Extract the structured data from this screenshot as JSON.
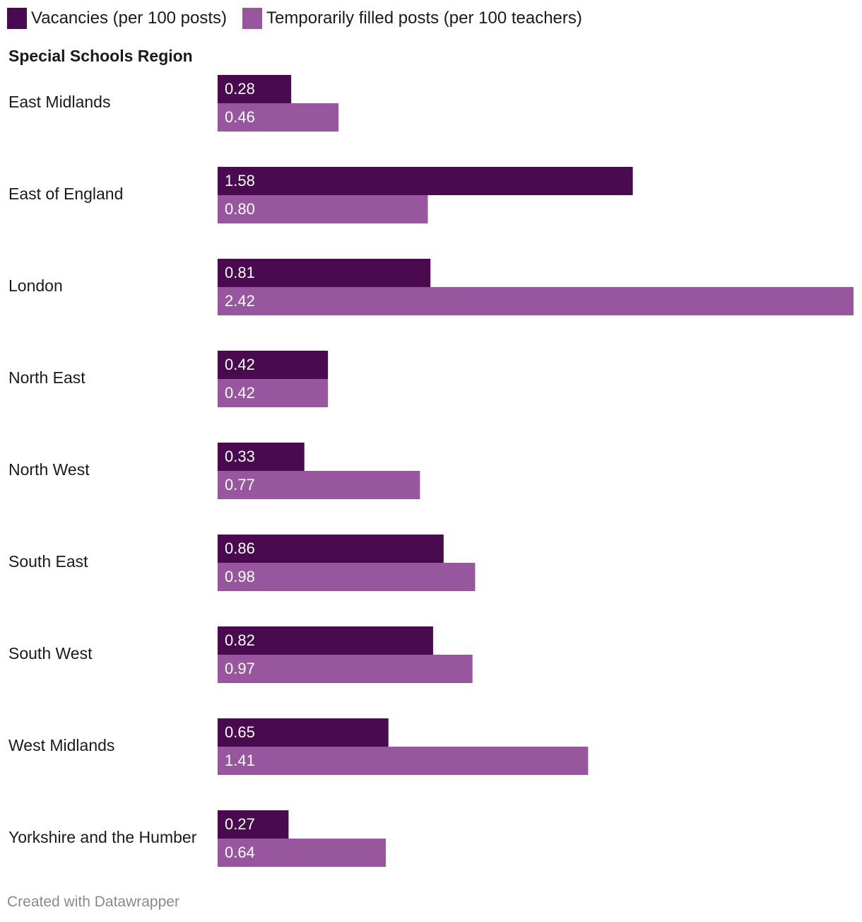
{
  "legend": {
    "series_0": "Vacancies (per 100 posts)",
    "series_1": "Temporarily filled posts (per 100 teachers)"
  },
  "column_header": "Special Schools Region",
  "footer": "Created with Datawrapper",
  "colors": {
    "series_0": "#4a0a4f",
    "series_1": "#97569d",
    "value_label": "#ffffff",
    "category_label": "#1a1a1a"
  },
  "chart_data": {
    "type": "bar",
    "orientation": "horizontal",
    "categories": [
      "East Midlands",
      "East of England",
      "London",
      "North East",
      "North West",
      "South East",
      "South West",
      "West Midlands",
      "Yorkshire and the Humber"
    ],
    "series": [
      {
        "name": "Vacancies (per 100 posts)",
        "values": [
          0.28,
          1.58,
          0.81,
          0.42,
          0.33,
          0.86,
          0.82,
          0.65,
          0.27
        ]
      },
      {
        "name": "Temporarily filled posts (per 100 teachers)",
        "values": [
          0.46,
          0.8,
          2.42,
          0.42,
          0.77,
          0.98,
          0.97,
          1.41,
          0.64
        ]
      }
    ],
    "value_labels": [
      [
        "0.28",
        "1.58",
        "0.81",
        "0.42",
        "0.33",
        "0.86",
        "0.82",
        "0.65",
        "0.27"
      ],
      [
        "0.46",
        "0.80",
        "2.42",
        "0.42",
        "0.77",
        "0.98",
        "0.97",
        "1.41",
        "0.64"
      ]
    ],
    "xlim": [
      0,
      2.42
    ],
    "grid": false,
    "legend_position": "top-left"
  }
}
